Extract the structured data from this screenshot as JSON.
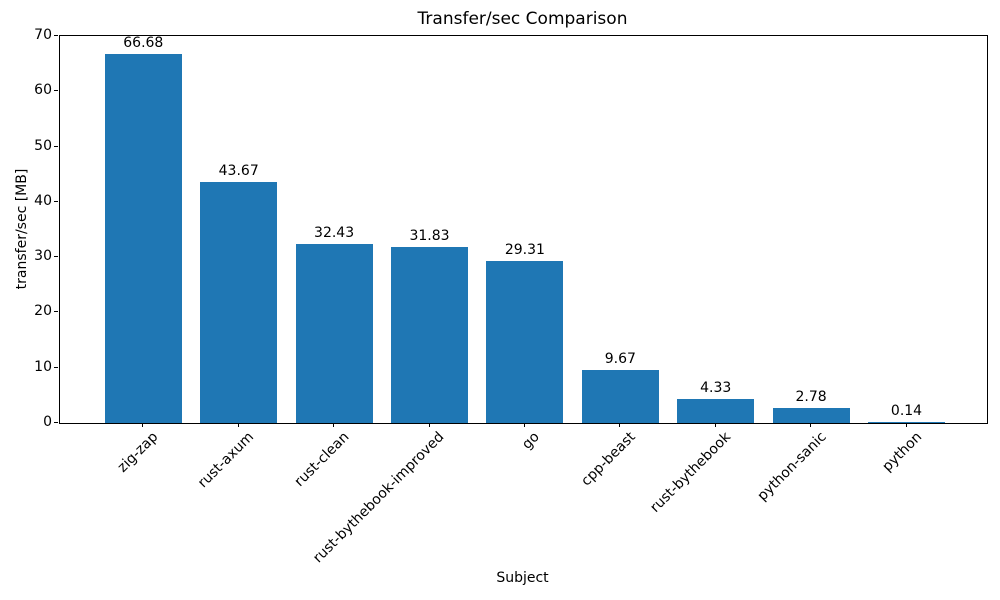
{
  "chart_data": {
    "type": "bar",
    "title": "Transfer/sec Comparison",
    "xlabel": "Subject",
    "ylabel": "transfer/sec [MB]",
    "categories": [
      "zig-zap",
      "rust-axum",
      "rust-clean",
      "rust-bythebook-improved",
      "go",
      "cpp-beast",
      "rust-bythebook",
      "python-sanic",
      "python"
    ],
    "values": [
      66.68,
      43.67,
      32.43,
      31.83,
      29.31,
      9.67,
      4.33,
      2.78,
      0.14
    ],
    "value_labels": [
      "66.68",
      "43.67",
      "32.43",
      "31.83",
      "29.31",
      "9.67",
      "4.33",
      "2.78",
      "0.14"
    ],
    "ylim": [
      0,
      70
    ],
    "yticks": [
      0,
      10,
      20,
      30,
      40,
      50,
      60,
      70
    ],
    "bar_color": "#1f77b4",
    "text_color": "#000000",
    "background_color": "#ffffff",
    "grid": false,
    "legend": "none",
    "xtick_rotation_deg": 45
  }
}
